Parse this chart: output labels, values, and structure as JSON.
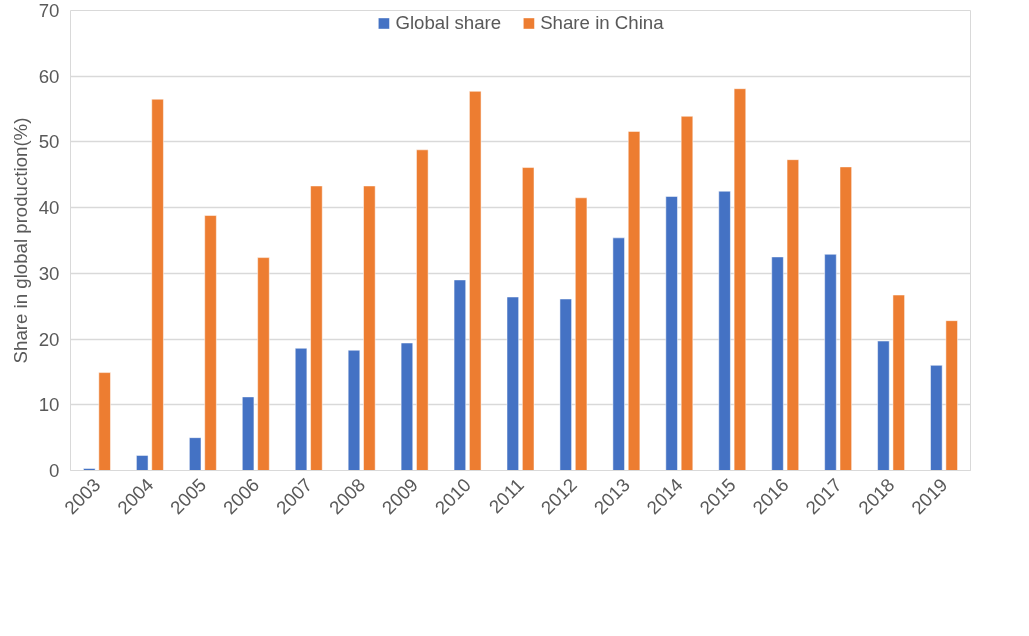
{
  "chart_data": {
    "type": "bar",
    "ylabel": "Share in global production(%)",
    "categories": [
      "2003",
      "2004",
      "2005",
      "2006",
      "2007",
      "2008",
      "2009",
      "2010",
      "2011",
      "2012",
      "2013",
      "2014",
      "2015",
      "2016",
      "2017",
      "2018",
      "2019"
    ],
    "series": [
      {
        "name": "Global share",
        "color": "#4472c4",
        "values": [
          0.3,
          2.3,
          5.0,
          11.2,
          18.6,
          18.3,
          19.4,
          29.0,
          26.4,
          26.1,
          35.4,
          41.7,
          42.5,
          32.5,
          32.9,
          19.7,
          16.0
        ]
      },
      {
        "name": "Share in China",
        "color": "#ed7d31",
        "values": [
          14.9,
          56.5,
          38.8,
          32.4,
          43.3,
          43.3,
          48.8,
          57.7,
          46.1,
          41.5,
          51.6,
          53.9,
          58.1,
          47.3,
          46.2,
          26.7,
          22.8
        ]
      }
    ],
    "ylim": [
      0,
      70
    ],
    "yticks": [
      0,
      10,
      20,
      30,
      40,
      50,
      60,
      70
    ],
    "grid": "y",
    "legend": "top"
  }
}
